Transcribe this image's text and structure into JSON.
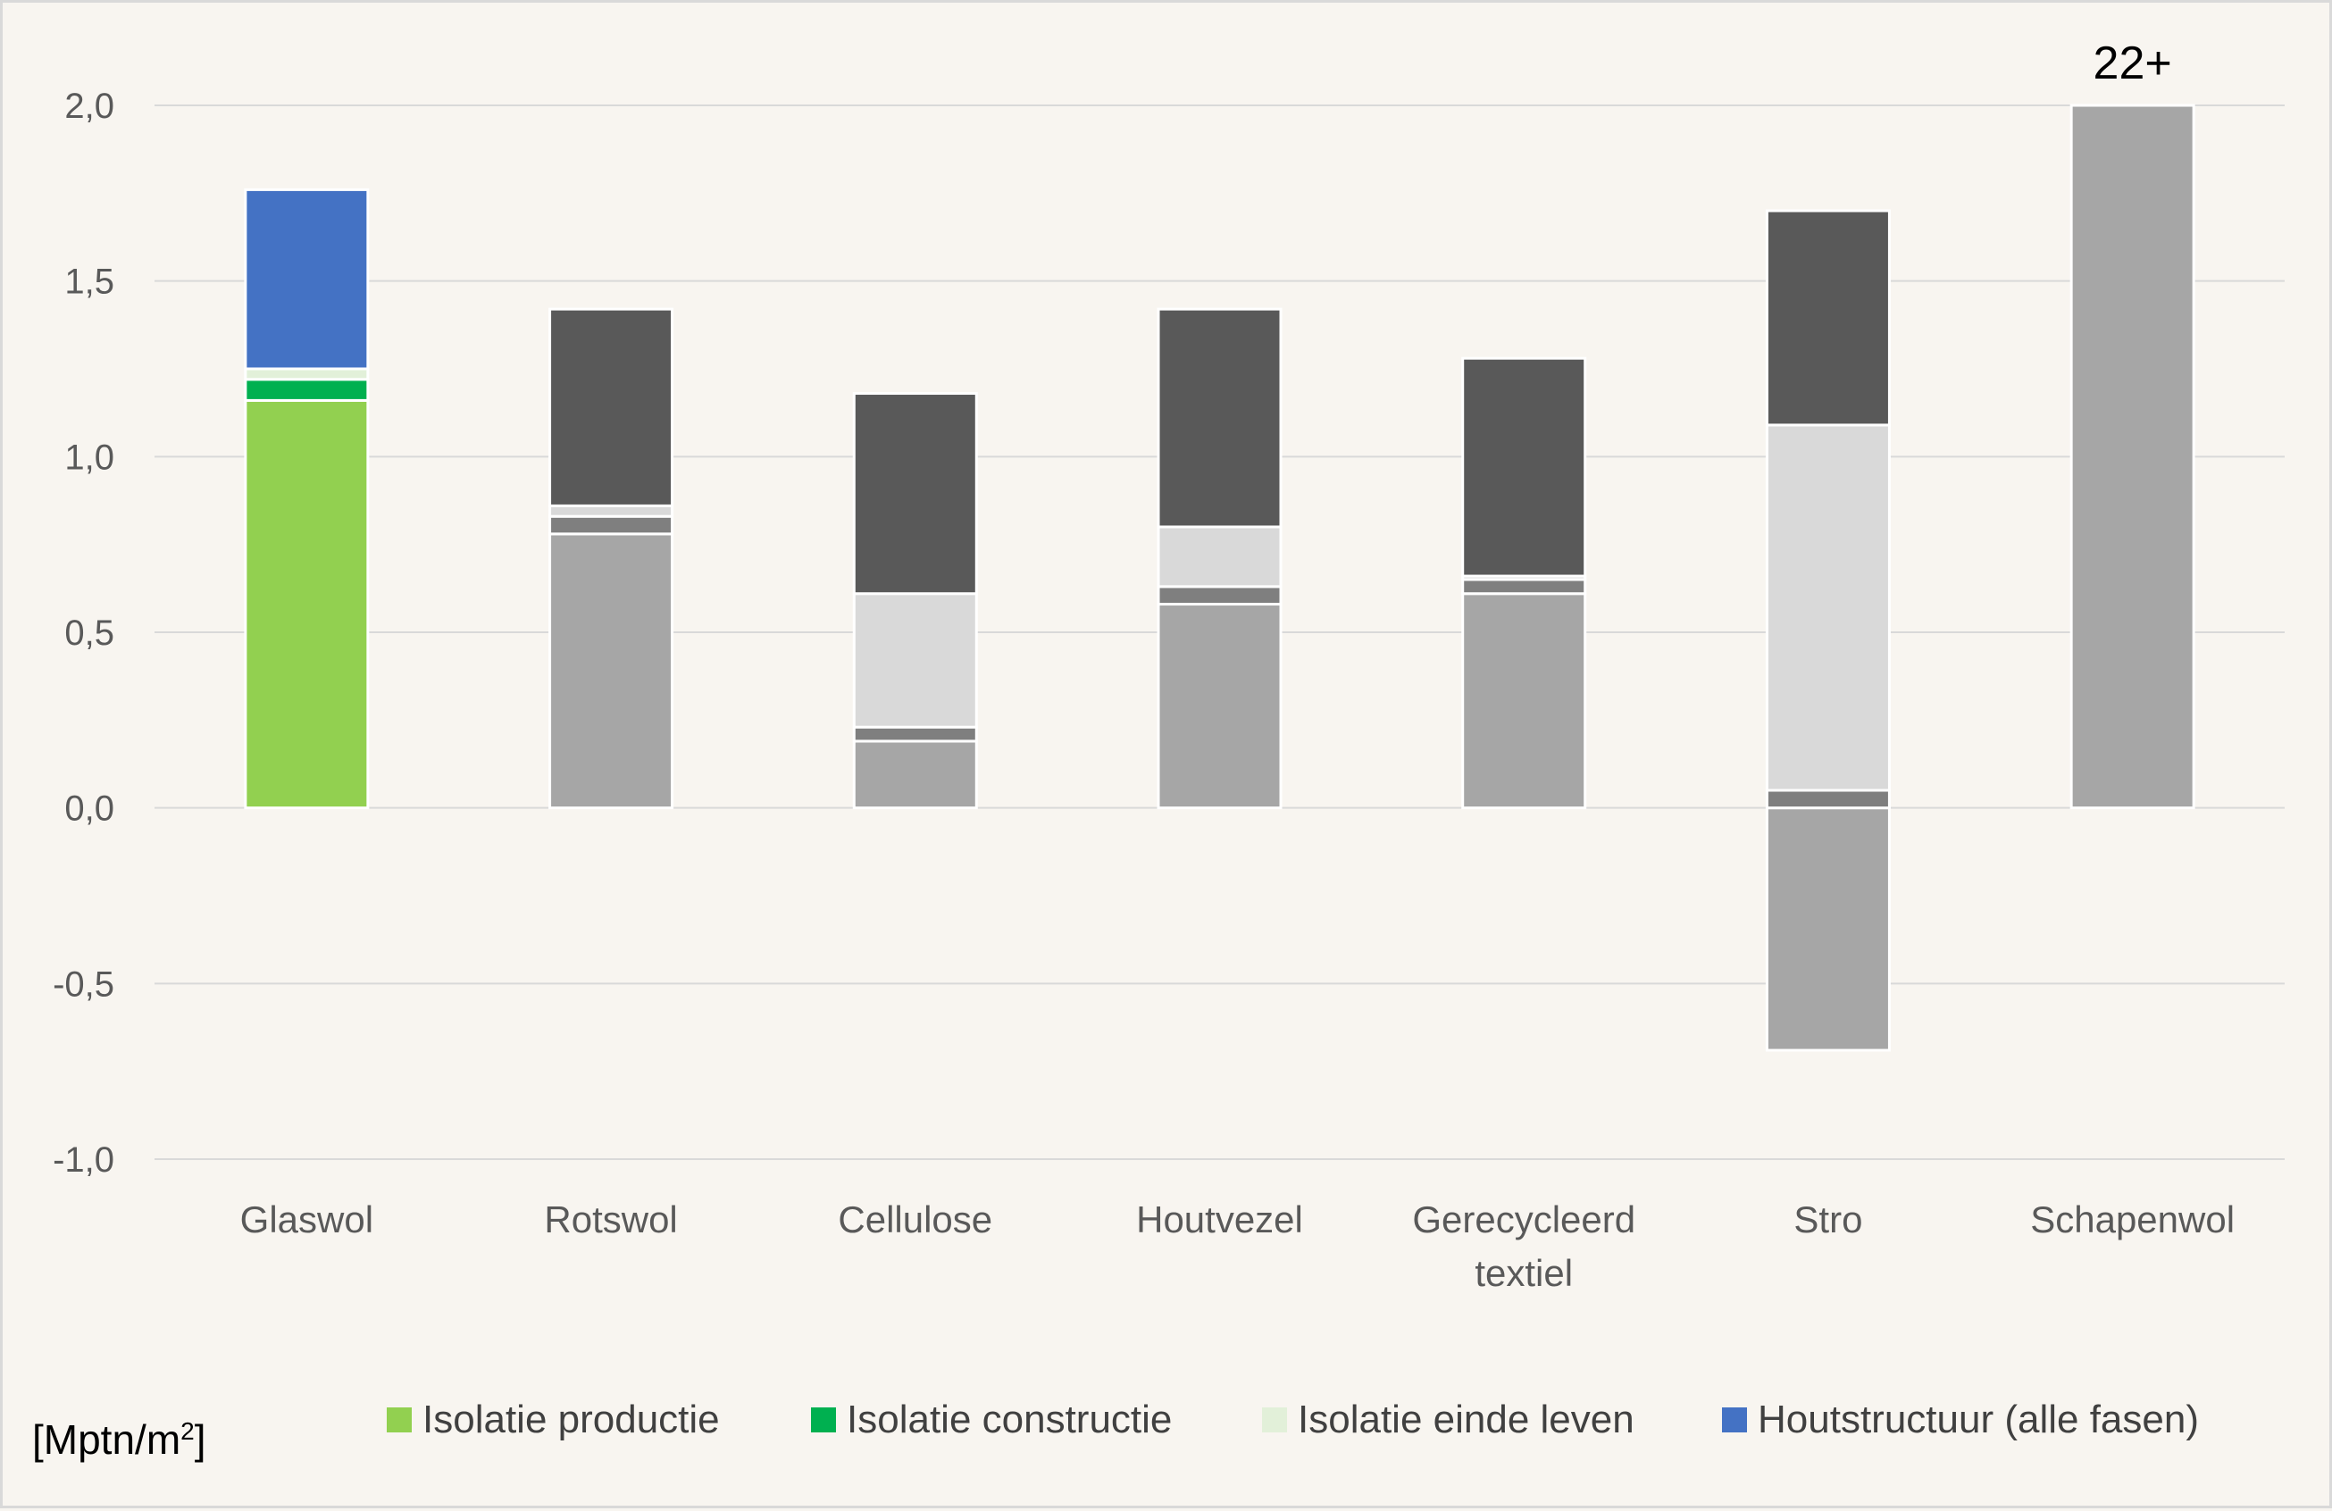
{
  "chart_data": {
    "type": "bar",
    "stacked": true,
    "unit_label": "[Mptn/m",
    "unit_sup": "2",
    "unit_close": "]",
    "ylim": [
      -1.0,
      2.0
    ],
    "yticks": [
      "2,0",
      "1,5",
      "1,0",
      "0,5",
      "0,0",
      "-0,5",
      "-1,0"
    ],
    "ytick_values": [
      2.0,
      1.5,
      1.0,
      0.5,
      0.0,
      -0.5,
      -1.0
    ],
    "grid": true,
    "legend_position": "bottom",
    "categories": [
      [
        "Glaswol"
      ],
      [
        "Rotswol"
      ],
      [
        "Cellulose"
      ],
      [
        "Houtvezel"
      ],
      [
        "Gerecycleerd",
        "textiel"
      ],
      [
        "Stro"
      ],
      [
        "Schapenwol"
      ]
    ],
    "series": [
      {
        "name": "Isolatie productie",
        "legend_color": "#92d050",
        "colors": [
          "#92d050",
          "#a6a6a6",
          "#a6a6a6",
          "#a6a6a6",
          "#a6a6a6",
          "#a6a6a6",
          "#a6a6a6"
        ],
        "values": [
          1.16,
          0.78,
          0.19,
          0.58,
          0.61,
          -0.69,
          2.0
        ]
      },
      {
        "name": "Isolatie constructie",
        "legend_color": "#00b050",
        "colors": [
          "#00b050",
          "#7f7f7f",
          "#7f7f7f",
          "#7f7f7f",
          "#7f7f7f",
          "#7f7f7f",
          "#7f7f7f"
        ],
        "values": [
          0.06,
          0.05,
          0.04,
          0.05,
          0.04,
          0.05,
          0
        ]
      },
      {
        "name": "Isolatie einde leven",
        "legend_color": "#e2f0d9",
        "colors": [
          "#e2f0d9",
          "#d9d9d9",
          "#d9d9d9",
          "#d9d9d9",
          "#d9d9d9",
          "#d9d9d9",
          "#d9d9d9"
        ],
        "values": [
          0.03,
          0.03,
          0.38,
          0.17,
          0.01,
          1.04,
          0
        ]
      },
      {
        "name": "Houtstructuur (alle fasen)",
        "legend_color": "#4472c4",
        "colors": [
          "#4472c4",
          "#595959",
          "#595959",
          "#595959",
          "#595959",
          "#595959",
          "#595959"
        ],
        "values": [
          0.51,
          0.56,
          0.57,
          0.62,
          0.62,
          0.61,
          0
        ]
      }
    ],
    "annotations": [
      {
        "category_index": 6,
        "text": "22+"
      }
    ]
  }
}
